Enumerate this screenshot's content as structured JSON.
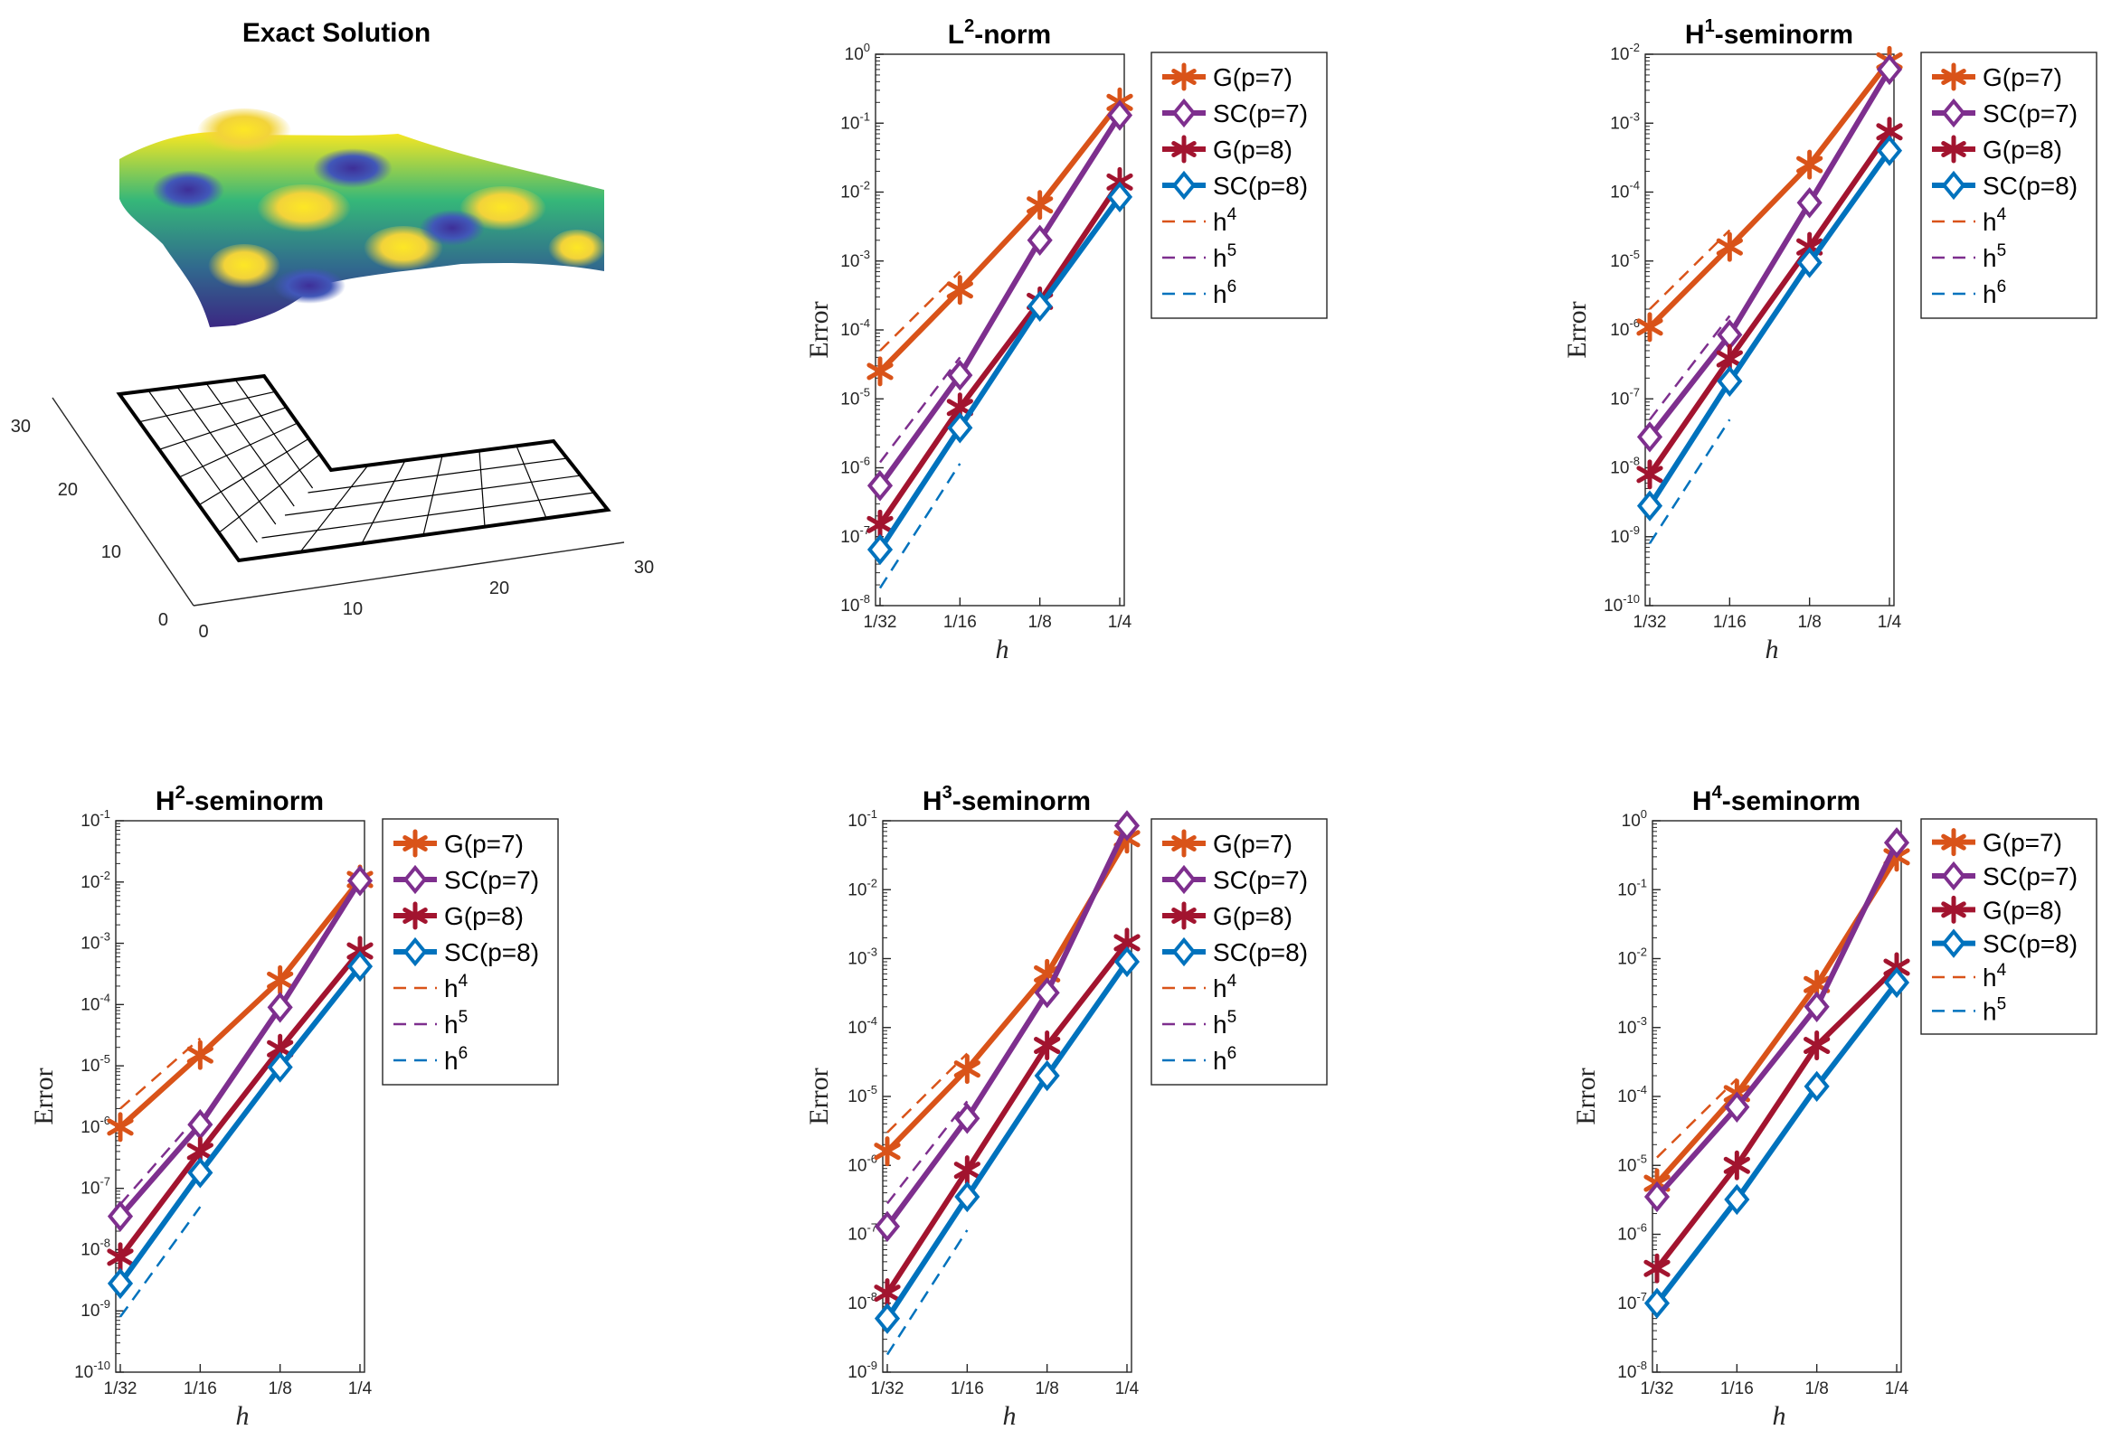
{
  "colors": {
    "g7": "#D95319",
    "sc7": "#7E2F8E",
    "g8": "#A2142F",
    "sc8": "#0072BD",
    "axis": "#262626",
    "legend_border": "#262626",
    "mesh": "#000000"
  },
  "exact": {
    "title": "Exact Solution",
    "ticks_x": [
      "0",
      "10",
      "20",
      "30"
    ],
    "ticks_y": [
      "0",
      "10",
      "20",
      "30"
    ]
  },
  "chart_data": [
    {
      "type": "line",
      "title": "L",
      "title_sup": "2",
      "title_suffix": "-norm",
      "xlabel": "h",
      "ylabel": "Error",
      "categories": [
        "1/32",
        "1/16",
        "1/8",
        "1/4"
      ],
      "yscale": "log",
      "ylim_exp": [
        -8,
        0
      ],
      "legend_position": "top-right",
      "series": [
        {
          "name": "G(p=7)",
          "key": "g7",
          "marker": "asterisk",
          "values": [
            2.5e-05,
            0.00038,
            0.0065,
            0.2
          ]
        },
        {
          "name": "SC(p=7)",
          "key": "sc7",
          "marker": "diamond",
          "values": [
            5.5e-07,
            2.2e-05,
            0.002,
            0.13
          ]
        },
        {
          "name": "G(p=8)",
          "key": "g8",
          "marker": "asterisk",
          "values": [
            1.5e-07,
            7.5e-06,
            0.00026,
            0.014
          ]
        },
        {
          "name": "SC(p=8)",
          "key": "sc8",
          "marker": "diamond",
          "values": [
            6.5e-08,
            3.8e-06,
            0.00022,
            0.0085
          ]
        }
      ],
      "reference": [
        {
          "name": "h",
          "sup": "4",
          "key": "g7",
          "x": [
            "1/32",
            "1/16"
          ],
          "values": [
            5e-05,
            0.0007
          ]
        },
        {
          "name": "h",
          "sup": "5",
          "key": "sc7",
          "x": [
            "1/32",
            "1/16"
          ],
          "values": [
            1.2e-06,
            4e-05
          ]
        },
        {
          "name": "h",
          "sup": "6",
          "key": "sc8",
          "x": [
            "1/32",
            "1/16"
          ],
          "values": [
            1.8e-08,
            1.15e-06
          ]
        }
      ]
    },
    {
      "type": "line",
      "title": "H",
      "title_sup": "1",
      "title_suffix": "-seminorm",
      "xlabel": "h",
      "ylabel": "Error",
      "categories": [
        "1/32",
        "1/16",
        "1/8",
        "1/4"
      ],
      "yscale": "log",
      "ylim_exp": [
        -10,
        -2
      ],
      "legend_position": "top-right",
      "series": [
        {
          "name": "G(p=7)",
          "key": "g7",
          "marker": "asterisk",
          "values": [
            1.1e-06,
            1.6e-05,
            0.00025,
            0.008
          ]
        },
        {
          "name": "SC(p=7)",
          "key": "sc7",
          "marker": "diamond",
          "values": [
            2.8e-08,
            8.5e-07,
            7e-05,
            0.006
          ]
        },
        {
          "name": "G(p=8)",
          "key": "g8",
          "marker": "asterisk",
          "values": [
            8e-09,
            3.8e-07,
            1.6e-05,
            0.00075
          ]
        },
        {
          "name": "SC(p=8)",
          "key": "sc8",
          "marker": "diamond",
          "values": [
            2.8e-09,
            1.8e-07,
            9.5e-06,
            0.0004
          ]
        }
      ],
      "reference": [
        {
          "name": "h",
          "sup": "4",
          "key": "g7",
          "x": [
            "1/32",
            "1/16"
          ],
          "values": [
            2e-06,
            2.8e-05
          ]
        },
        {
          "name": "h",
          "sup": "5",
          "key": "sc7",
          "x": [
            "1/32",
            "1/16"
          ],
          "values": [
            5e-08,
            1.6e-06
          ]
        },
        {
          "name": "h",
          "sup": "6",
          "key": "sc8",
          "x": [
            "1/32",
            "1/16"
          ],
          "values": [
            8e-10,
            5e-08
          ]
        }
      ]
    },
    {
      "type": "line",
      "title": "H",
      "title_sup": "2",
      "title_suffix": "-seminorm",
      "xlabel": "h",
      "ylabel": "Error",
      "categories": [
        "1/32",
        "1/16",
        "1/8",
        "1/4"
      ],
      "yscale": "log",
      "ylim_exp": [
        -10,
        -1
      ],
      "legend_position": "top-right",
      "series": [
        {
          "name": "G(p=7)",
          "key": "g7",
          "marker": "asterisk",
          "values": [
            1e-06,
            1.5e-05,
            0.00025,
            0.011
          ]
        },
        {
          "name": "SC(p=7)",
          "key": "sc7",
          "marker": "diamond",
          "values": [
            3.5e-08,
            1.1e-06,
            9e-05,
            0.0105
          ]
        },
        {
          "name": "G(p=8)",
          "key": "g8",
          "marker": "asterisk",
          "values": [
            7.5e-09,
            4e-07,
            1.9e-05,
            0.00075
          ]
        },
        {
          "name": "SC(p=8)",
          "key": "sc8",
          "marker": "diamond",
          "values": [
            2.8e-09,
            1.8e-07,
            9.5e-06,
            0.00042
          ]
        }
      ],
      "reference": [
        {
          "name": "h",
          "sup": "4",
          "key": "g7",
          "x": [
            "1/32",
            "1/16"
          ],
          "values": [
            2e-06,
            2.8e-05
          ]
        },
        {
          "name": "h",
          "sup": "5",
          "key": "sc7",
          "x": [
            "1/32",
            "1/16"
          ],
          "values": [
            5.5e-08,
            1.7e-06
          ]
        },
        {
          "name": "h",
          "sup": "6",
          "key": "sc8",
          "x": [
            "1/32",
            "1/16"
          ],
          "values": [
            8e-10,
            5e-08
          ]
        }
      ]
    },
    {
      "type": "line",
      "title": "H",
      "title_sup": "3",
      "title_suffix": "-seminorm",
      "xlabel": "h",
      "ylabel": "Error",
      "categories": [
        "1/32",
        "1/16",
        "1/8",
        "1/4"
      ],
      "yscale": "log",
      "ylim_exp": [
        -9,
        -1
      ],
      "legend_position": "top-right",
      "series": [
        {
          "name": "G(p=7)",
          "key": "g7",
          "marker": "asterisk",
          "values": [
            1.6e-06,
            2.5e-05,
            0.0006,
            0.055
          ]
        },
        {
          "name": "SC(p=7)",
          "key": "sc7",
          "marker": "diamond",
          "values": [
            1.3e-07,
            4.8e-06,
            0.00032,
            0.085
          ]
        },
        {
          "name": "G(p=8)",
          "key": "g8",
          "marker": "asterisk",
          "values": [
            1.4e-08,
            8.5e-07,
            5.5e-05,
            0.0017
          ]
        },
        {
          "name": "SC(p=8)",
          "key": "sc8",
          "marker": "diamond",
          "values": [
            6e-09,
            3.5e-07,
            2e-05,
            0.0009
          ]
        }
      ],
      "reference": [
        {
          "name": "h",
          "sup": "4",
          "key": "g7",
          "x": [
            "1/32",
            "1/16"
          ],
          "values": [
            3e-06,
            4.2e-05
          ]
        },
        {
          "name": "h",
          "sup": "5",
          "key": "sc7",
          "x": [
            "1/32",
            "1/16"
          ],
          "values": [
            2.8e-07,
            8.5e-06
          ]
        },
        {
          "name": "h",
          "sup": "6",
          "key": "sc8",
          "x": [
            "1/32",
            "1/16"
          ],
          "values": [
            1.8e-09,
            1.15e-07
          ]
        }
      ]
    },
    {
      "type": "line",
      "title": "H",
      "title_sup": "4",
      "title_suffix": "-seminorm",
      "xlabel": "h",
      "ylabel": "Error",
      "categories": [
        "1/32",
        "1/16",
        "1/8",
        "1/4"
      ],
      "yscale": "log",
      "ylim_exp": [
        -8,
        0
      ],
      "legend_position": "top-right",
      "series": [
        {
          "name": "G(p=7)",
          "key": "g7",
          "marker": "asterisk",
          "values": [
            5.5e-06,
            0.00011,
            0.0042,
            0.3
          ]
        },
        {
          "name": "SC(p=7)",
          "key": "sc7",
          "marker": "diamond",
          "values": [
            3.5e-06,
            7e-05,
            0.002,
            0.48
          ]
        },
        {
          "name": "G(p=8)",
          "key": "g8",
          "marker": "asterisk",
          "values": [
            3.2e-07,
            1e-05,
            0.00055,
            0.0075
          ]
        },
        {
          "name": "SC(p=8)",
          "key": "sc8",
          "marker": "diamond",
          "values": [
            1e-07,
            3.2e-06,
            0.00014,
            0.0045
          ]
        }
      ],
      "reference": [
        {
          "name": "h",
          "sup": "4",
          "key": "g7",
          "x": [
            "1/32",
            "1/16"
          ],
          "values": [
            1.3e-05,
            0.00018
          ]
        },
        {
          "name": "h",
          "sup": "5",
          "key": "sc8",
          "x": [
            "1/32",
            "1/16"
          ],
          "values": [
            3e-07,
            9.5e-06
          ]
        }
      ]
    }
  ]
}
